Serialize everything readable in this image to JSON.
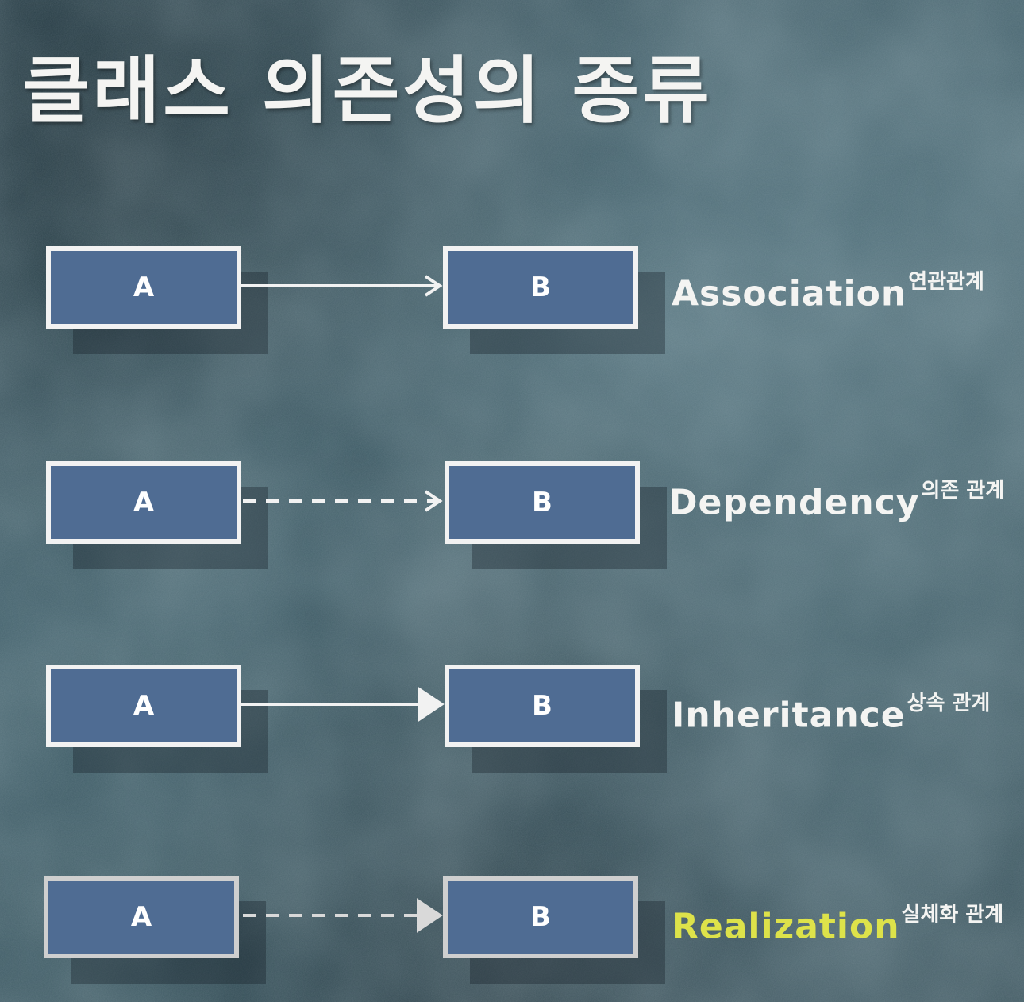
{
  "title": "클래스 의존성의 종류",
  "relations": [
    {
      "source": "A",
      "target": "B",
      "name": "Association",
      "korean": "연관관계",
      "line": "solid",
      "head": "open-arrow"
    },
    {
      "source": "A",
      "target": "B",
      "name": "Dependency",
      "korean": "의존 관계",
      "line": "dashed",
      "head": "open-arrow"
    },
    {
      "source": "A",
      "target": "B",
      "name": "Inheritance",
      "korean": "상속 관계",
      "line": "solid",
      "head": "hollow-triangle"
    },
    {
      "source": "A",
      "target": "B",
      "name": "Realization",
      "korean": "실체화 관계",
      "line": "dashed",
      "head": "hollow-triangle"
    }
  ],
  "colors": {
    "box_fill": "#4f6c93",
    "box_border": "#f2f2f2",
    "text": "#f4f4f2",
    "highlight": "#dde24a",
    "background": "#34515b"
  }
}
